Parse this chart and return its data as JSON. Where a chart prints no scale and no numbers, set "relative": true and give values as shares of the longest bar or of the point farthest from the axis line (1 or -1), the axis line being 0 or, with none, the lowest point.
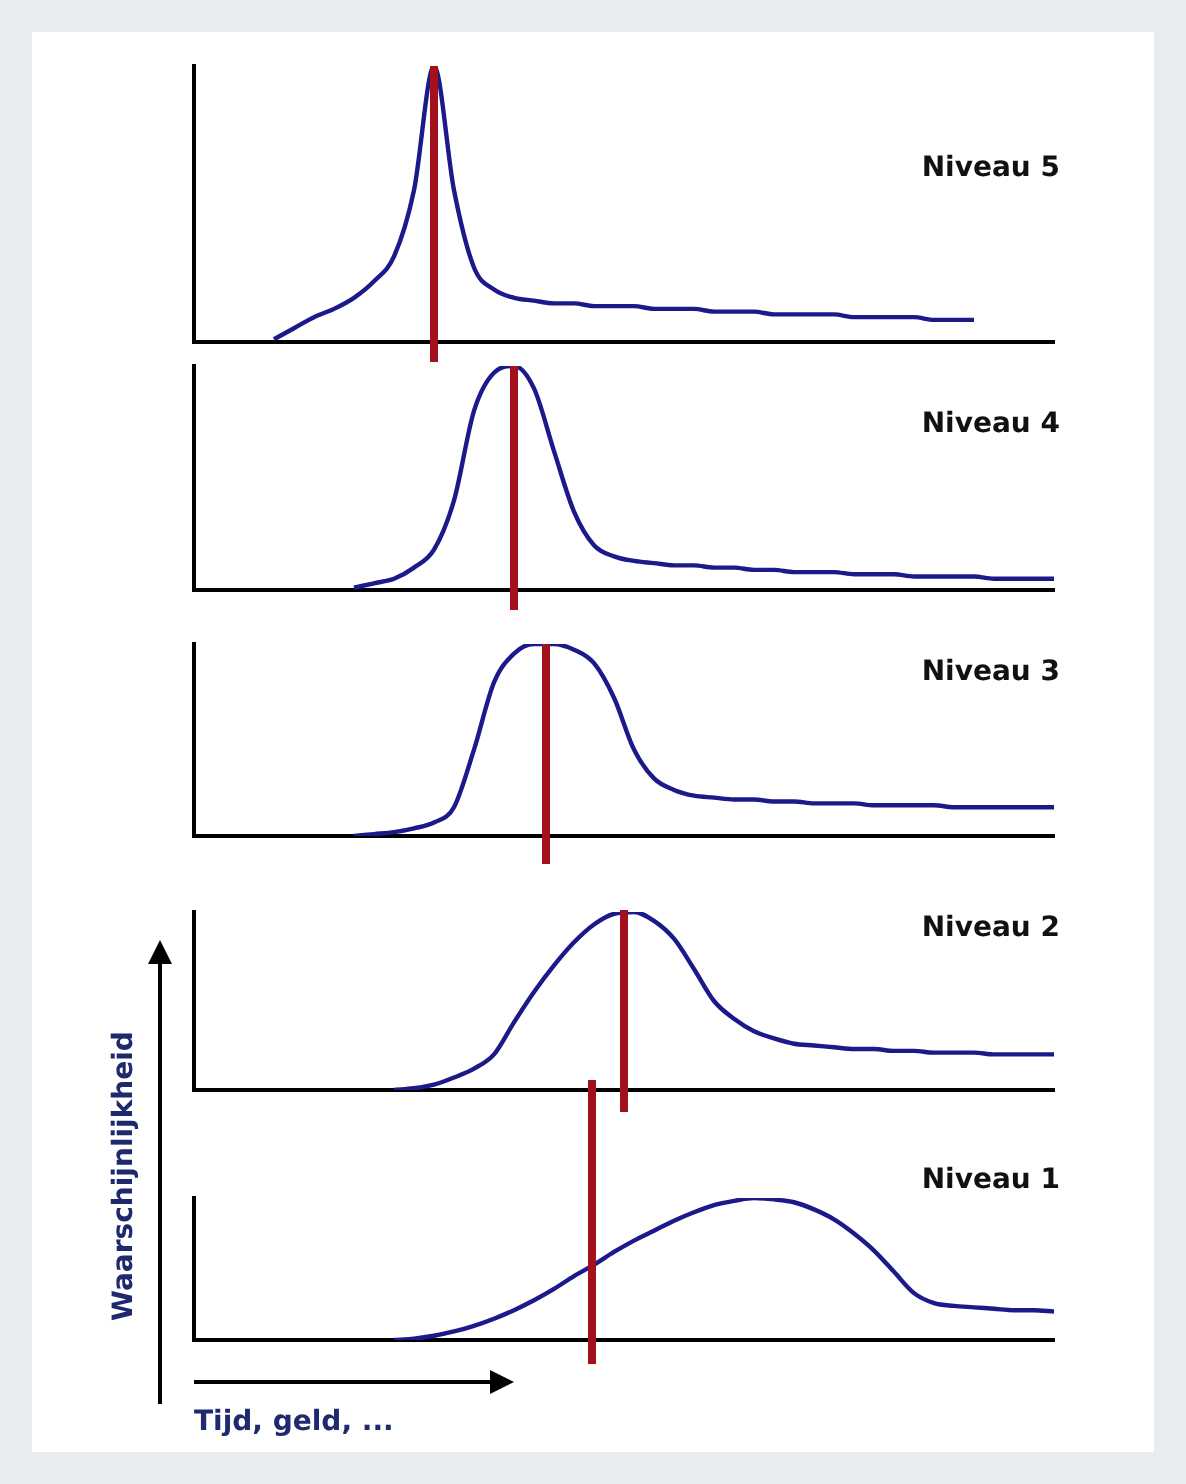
{
  "chart_data": [
    {
      "type": "line",
      "title": "Niveau 5",
      "relative": true,
      "tick_labels": false,
      "grid": false,
      "legend": false,
      "marker": "none",
      "categories": [
        null,
        null,
        null,
        null,
        null,
        null,
        null,
        null,
        null,
        null,
        null,
        null,
        null,
        null,
        null,
        null,
        null,
        null,
        null,
        null,
        null,
        null,
        null,
        null,
        null,
        null,
        null,
        null,
        null,
        null,
        null,
        null,
        null,
        null,
        null,
        null,
        null,
        null,
        null,
        null,
        null,
        null,
        null,
        null
      ],
      "series": [
        {
          "color": "#1c1a8a",
          "values": [
            null,
            null,
            null,
            null,
            0.01,
            0.05,
            0.09,
            0.12,
            0.16,
            0.22,
            0.31,
            0.55,
            1,
            0.55,
            0.27,
            0.19,
            0.16,
            0.15,
            0.14,
            0.14,
            0.13,
            0.13,
            0.13,
            0.12,
            0.12,
            0.12,
            0.11,
            0.11,
            0.11,
            0.1,
            0.1,
            0.1,
            0.1,
            0.09,
            0.09,
            0.09,
            0.09,
            0.08,
            0.08,
            0.08,
            null,
            null,
            null,
            null
          ]
        }
      ]
    },
    {
      "type": "line",
      "title": "Niveau 4",
      "relative": true,
      "tick_labels": false,
      "grid": false,
      "legend": false,
      "marker": "none",
      "categories": [
        null,
        null,
        null,
        null,
        null,
        null,
        null,
        null,
        null,
        null,
        null,
        null,
        null,
        null,
        null,
        null,
        null,
        null,
        null,
        null,
        null,
        null,
        null,
        null,
        null,
        null,
        null,
        null,
        null,
        null,
        null,
        null,
        null,
        null,
        null,
        null,
        null,
        null,
        null,
        null,
        null,
        null,
        null,
        null
      ],
      "series": [
        {
          "color": "#1c1a8a",
          "values": [
            null,
            null,
            null,
            null,
            null,
            null,
            null,
            null,
            0.01,
            0.03,
            0.05,
            0.1,
            0.18,
            0.4,
            0.8,
            0.97,
            1,
            0.9,
            0.62,
            0.35,
            0.2,
            0.15,
            0.13,
            0.12,
            0.11,
            0.11,
            0.1,
            0.1,
            0.09,
            0.09,
            0.08,
            0.08,
            0.08,
            0.07,
            0.07,
            0.07,
            0.06,
            0.06,
            0.06,
            0.06,
            0.05,
            0.05,
            0.05,
            0.05
          ]
        }
      ]
    },
    {
      "type": "line",
      "title": "Niveau 3",
      "relative": true,
      "tick_labels": false,
      "grid": false,
      "legend": false,
      "marker": "none",
      "categories": [
        null,
        null,
        null,
        null,
        null,
        null,
        null,
        null,
        null,
        null,
        null,
        null,
        null,
        null,
        null,
        null,
        null,
        null,
        null,
        null,
        null,
        null,
        null,
        null,
        null,
        null,
        null,
        null,
        null,
        null,
        null,
        null,
        null,
        null,
        null,
        null,
        null,
        null,
        null,
        null,
        null,
        null,
        null,
        null
      ],
      "series": [
        {
          "color": "#1c1a8a",
          "values": [
            null,
            null,
            null,
            null,
            null,
            null,
            null,
            null,
            0,
            0.01,
            0.02,
            0.04,
            0.07,
            0.15,
            0.45,
            0.8,
            0.95,
            1,
            1,
            0.97,
            0.9,
            0.72,
            0.45,
            0.3,
            0.24,
            0.21,
            0.2,
            0.19,
            0.19,
            0.18,
            0.18,
            0.17,
            0.17,
            0.17,
            0.16,
            0.16,
            0.16,
            0.16,
            0.15,
            0.15,
            0.15,
            0.15,
            0.15,
            0.15
          ]
        }
      ]
    },
    {
      "type": "line",
      "title": "Niveau 2",
      "relative": true,
      "tick_labels": false,
      "grid": false,
      "legend": false,
      "marker": "none",
      "categories": [
        null,
        null,
        null,
        null,
        null,
        null,
        null,
        null,
        null,
        null,
        null,
        null,
        null,
        null,
        null,
        null,
        null,
        null,
        null,
        null,
        null,
        null,
        null,
        null,
        null,
        null,
        null,
        null,
        null,
        null,
        null,
        null,
        null,
        null,
        null,
        null,
        null,
        null,
        null,
        null,
        null,
        null,
        null,
        null
      ],
      "series": [
        {
          "color": "#1c1a8a",
          "values": [
            null,
            null,
            null,
            null,
            null,
            null,
            null,
            null,
            null,
            null,
            0,
            0.01,
            0.03,
            0.07,
            0.12,
            0.2,
            0.38,
            0.55,
            0.7,
            0.83,
            0.93,
            0.99,
            1,
            0.95,
            0.85,
            0.68,
            0.5,
            0.4,
            0.33,
            0.29,
            0.26,
            0.25,
            0.24,
            0.23,
            0.23,
            0.22,
            0.22,
            0.21,
            0.21,
            0.21,
            0.2,
            0.2,
            0.2,
            0.2
          ]
        }
      ]
    },
    {
      "type": "line",
      "title": "Niveau 1",
      "xlabel": "Tijd, geld, ...",
      "ylabel": "Waarschijnlijkheid",
      "relative": true,
      "tick_labels": false,
      "grid": false,
      "legend": false,
      "marker": "none",
      "categories": [
        null,
        null,
        null,
        null,
        null,
        null,
        null,
        null,
        null,
        null,
        null,
        null,
        null,
        null,
        null,
        null,
        null,
        null,
        null,
        null,
        null,
        null,
        null,
        null,
        null,
        null,
        null,
        null,
        null,
        null,
        null,
        null,
        null,
        null,
        null,
        null,
        null,
        null,
        null,
        null,
        null,
        null,
        null,
        null
      ],
      "series": [
        {
          "color": "#1c1a8a",
          "values": [
            null,
            null,
            null,
            null,
            null,
            null,
            null,
            null,
            null,
            null,
            0,
            0.01,
            0.03,
            0.06,
            0.1,
            0.15,
            0.21,
            0.28,
            0.36,
            0.45,
            0.53,
            0.62,
            0.7,
            0.77,
            0.84,
            0.9,
            0.95,
            0.98,
            1,
            0.99,
            0.97,
            0.92,
            0.85,
            0.75,
            0.63,
            0.48,
            0.33,
            0.26,
            0.24,
            0.23,
            0.22,
            0.21,
            0.21,
            0.2
          ]
        }
      ]
    }
  ]
}
